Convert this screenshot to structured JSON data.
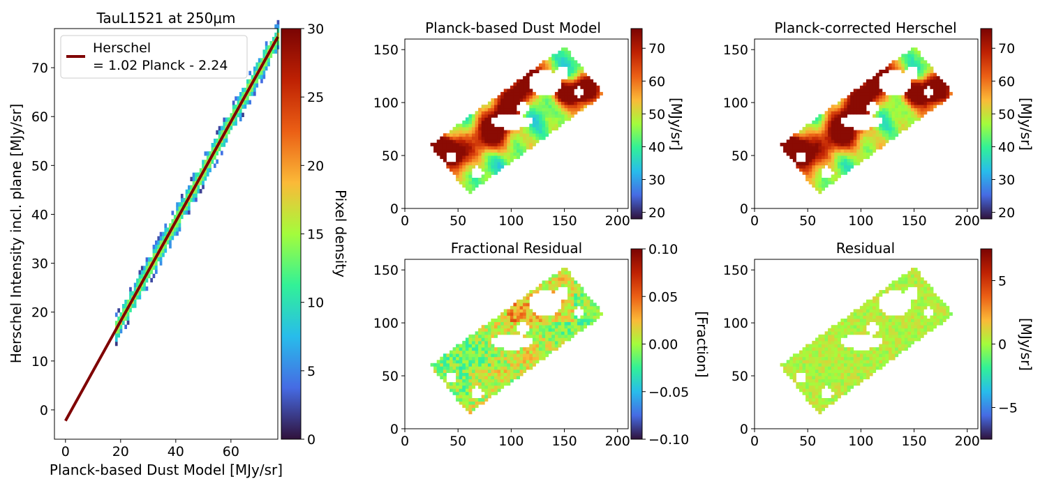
{
  "chart_data": [
    {
      "type": "heatmap",
      "subtype": "2d-histogram-with-fit-line",
      "title": "TauL1521 at 250μm",
      "xlabel": "Planck-based Dust Model [MJy/sr]",
      "ylabel": "Herschel Intensity incl. plane [MJy/sr]",
      "xlim": [
        -4,
        77
      ],
      "ylim": [
        -6,
        78
      ],
      "xticks": [
        0,
        20,
        40,
        60
      ],
      "yticks": [
        0,
        10,
        20,
        30,
        40,
        50,
        60,
        70
      ],
      "fit": {
        "slope": 1.02,
        "intercept": -2.24,
        "x_range": [
          0,
          77
        ],
        "color": "#7f0000"
      },
      "legend": {
        "position": "top-left",
        "entries": [
          "Herschel",
          "= 1.02 Planck - 2.24"
        ]
      },
      "colorbar": {
        "label": "Pixel density",
        "min": 0,
        "max": 30,
        "ticks": [
          0,
          5,
          10,
          15,
          20,
          25,
          30
        ],
        "colormap": "turbo"
      },
      "data_extent": {
        "x": [
          18,
          77
        ]
      }
    },
    {
      "type": "heatmap",
      "title": "Planck-based Dust Model",
      "xlim": [
        0,
        210
      ],
      "ylim": [
        0,
        160
      ],
      "xticks": [
        0,
        50,
        100,
        150,
        200
      ],
      "yticks": [
        0,
        50,
        100,
        150
      ],
      "colorbar": {
        "label": "[MJy/sr]",
        "min": 18,
        "max": 76,
        "ticks": [
          20,
          30,
          40,
          50,
          60,
          70
        ],
        "tick_labels": [
          "20",
          "30",
          "40",
          "50",
          "60",
          "70"
        ],
        "colormap": "turbo"
      },
      "map_extent": {
        "x": [
          24,
          187
        ],
        "y": [
          14,
          153
        ]
      }
    },
    {
      "type": "heatmap",
      "title": "Planck-corrected Herschel",
      "xlim": [
        0,
        210
      ],
      "ylim": [
        0,
        160
      ],
      "xticks": [
        0,
        50,
        100,
        150,
        200
      ],
      "yticks": [
        0,
        50,
        100,
        150
      ],
      "colorbar": {
        "label": "[MJy/sr]",
        "min": 18,
        "max": 76,
        "ticks": [
          20,
          30,
          40,
          50,
          60,
          70
        ],
        "tick_labels": [
          "20",
          "30",
          "40",
          "50",
          "60",
          "70"
        ],
        "colormap": "turbo"
      },
      "map_extent": {
        "x": [
          24,
          187
        ],
        "y": [
          14,
          153
        ]
      }
    },
    {
      "type": "heatmap",
      "title": "Fractional Residual",
      "xlim": [
        0,
        210
      ],
      "ylim": [
        0,
        160
      ],
      "xticks": [
        0,
        50,
        100,
        150,
        200
      ],
      "yticks": [
        0,
        50,
        100,
        150
      ],
      "colorbar": {
        "label": "[Fraction]",
        "min": -0.1,
        "max": 0.1,
        "ticks": [
          -0.1,
          -0.05,
          0,
          0.05,
          0.1
        ],
        "tick_labels": [
          "−0.10",
          "−0.05",
          "0.00",
          "0.05",
          "0.10"
        ],
        "colormap": "turbo"
      },
      "map_extent": {
        "x": [
          24,
          187
        ],
        "y": [
          14,
          153
        ]
      }
    },
    {
      "type": "heatmap",
      "title": "Residual",
      "xlim": [
        0,
        210
      ],
      "ylim": [
        0,
        160
      ],
      "xticks": [
        0,
        50,
        100,
        150,
        200
      ],
      "yticks": [
        0,
        50,
        100,
        150
      ],
      "colorbar": {
        "label": "[MJy/sr]",
        "min": -7.5,
        "max": 7.5,
        "ticks": [
          -5,
          0,
          5
        ],
        "tick_labels": [
          "−5",
          "0",
          "5"
        ],
        "colormap": "turbo"
      },
      "map_extent": {
        "x": [
          24,
          187
        ],
        "y": [
          14,
          153
        ]
      }
    }
  ]
}
